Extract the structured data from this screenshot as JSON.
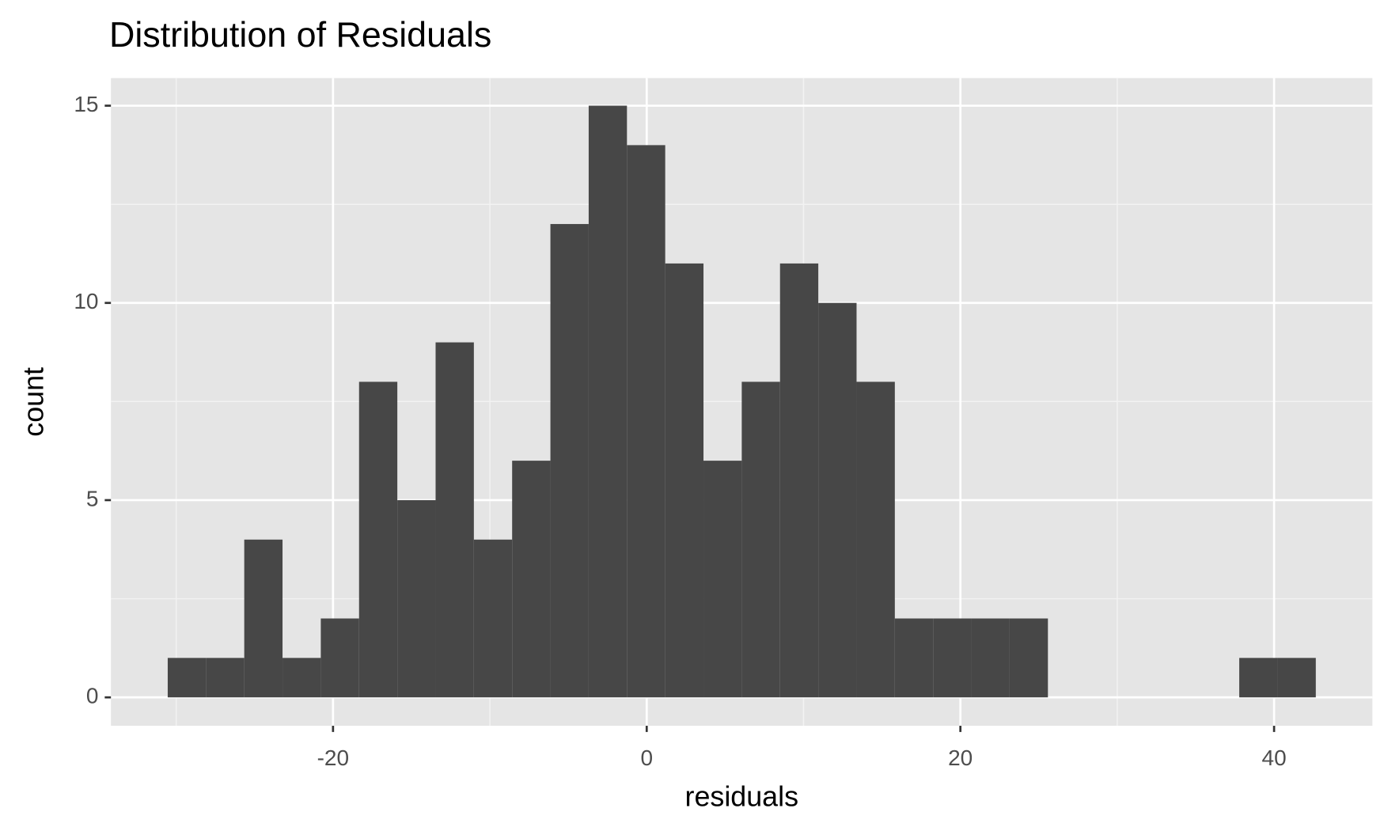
{
  "chart_data": {
    "type": "histogram",
    "title": "Distribution of Residuals",
    "x_label": "residuals",
    "y_label": "count",
    "bins": [
      -30.54,
      -28.1,
      -25.66,
      -23.22,
      -20.78,
      -18.34,
      -15.9,
      -13.46,
      -11.02,
      -8.58,
      -6.14,
      -3.7,
      -1.26,
      1.18,
      3.62,
      6.06,
      8.5,
      10.94,
      13.38,
      15.82,
      18.26,
      20.7,
      23.14,
      25.58,
      28.02,
      30.46,
      32.9,
      35.34,
      37.78,
      40.22,
      42.66
    ],
    "counts": [
      1,
      1,
      4,
      1,
      2,
      8,
      5,
      9,
      4,
      6,
      12,
      15,
      14,
      11,
      6,
      8,
      11,
      10,
      8,
      2,
      2,
      2,
      2,
      0,
      0,
      0,
      0,
      0,
      1,
      1
    ],
    "color": "#474747",
    "xlim": [
      -34.16,
      46.27
    ],
    "xticks": [
      -20,
      0,
      20,
      40
    ],
    "ylim": [
      -0.72,
      15.7
    ],
    "yticks": [
      0,
      5,
      10,
      15
    ],
    "grid": true
  }
}
